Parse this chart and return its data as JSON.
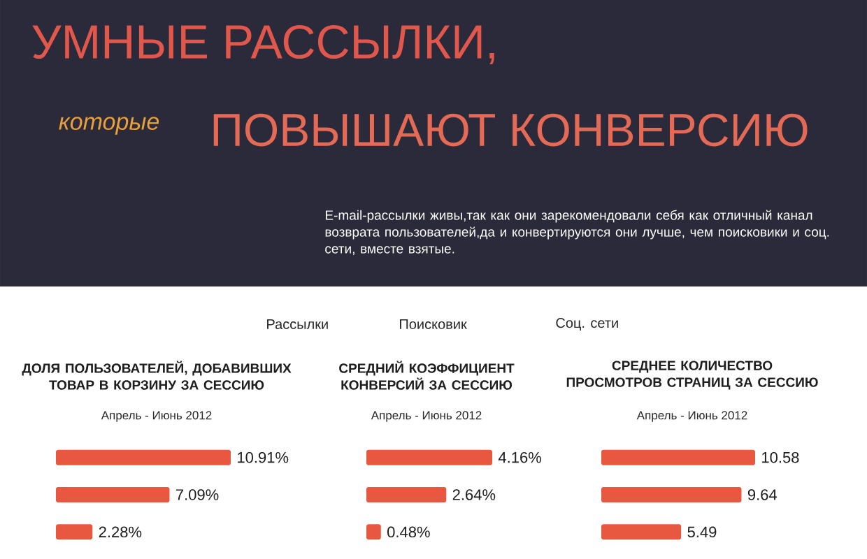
{
  "chart_data": [
    {
      "type": "other",
      "title": "УМНЫЕ РАССЫЛКИ,",
      "annotations": [
        "которые",
        "ПОВЫШАЮТ КОНВЕРСИЮ",
        "E-mail-рассылки живы,так как они зарекомендовали себя как отличный канал возврата пользователей,да и конвертируются они лучше, чем поисковики и соц. сети, вместе взятые.",
        "Рассылки",
        "Поисковик",
        "Соц. сети"
      ]
    },
    {
      "type": "bar",
      "orientation": "horizontal",
      "title": "ДОЛЯ ПОЛЬЗОВАТЕЛЕЙ, ДОБАВИВШИХ ТОВАР В КОРЗИНУ ЗА СЕССИЮ",
      "subtitle": "Апрель - Июнь 2012",
      "categories": [
        null,
        null,
        null
      ],
      "values": [
        10.91,
        7.09,
        2.28
      ],
      "value_labels": [
        "10.91%",
        "7.09%",
        "2.28%"
      ],
      "color": "#e8573f"
    },
    {
      "type": "bar",
      "orientation": "horizontal",
      "title": "СРЕДНИЙ КОЭФФИЦИЕНТ КОНВЕРСИЙ ЗА СЕССИЮ",
      "subtitle": "Апрель - Июнь 2012",
      "categories": [
        null,
        null,
        null
      ],
      "values": [
        4.16,
        2.64,
        0.48
      ],
      "value_labels": [
        "4.16%",
        "2.64%",
        "0.48%"
      ],
      "color": "#e8573f"
    },
    {
      "type": "bar",
      "orientation": "horizontal",
      "title": "СРЕДНЕЕ КОЛИЧЕСТВО ПРОСМОТРОВ СТРАНИЦ ЗА СЕССИЮ",
      "subtitle": "Апрель - Июнь 2012",
      "categories": [
        null,
        null,
        null
      ],
      "values": [
        10.58,
        9.64,
        5.49
      ],
      "value_labels": [
        "10.58",
        "9.64",
        "5.49"
      ],
      "color": "#e8573f"
    }
  ]
}
